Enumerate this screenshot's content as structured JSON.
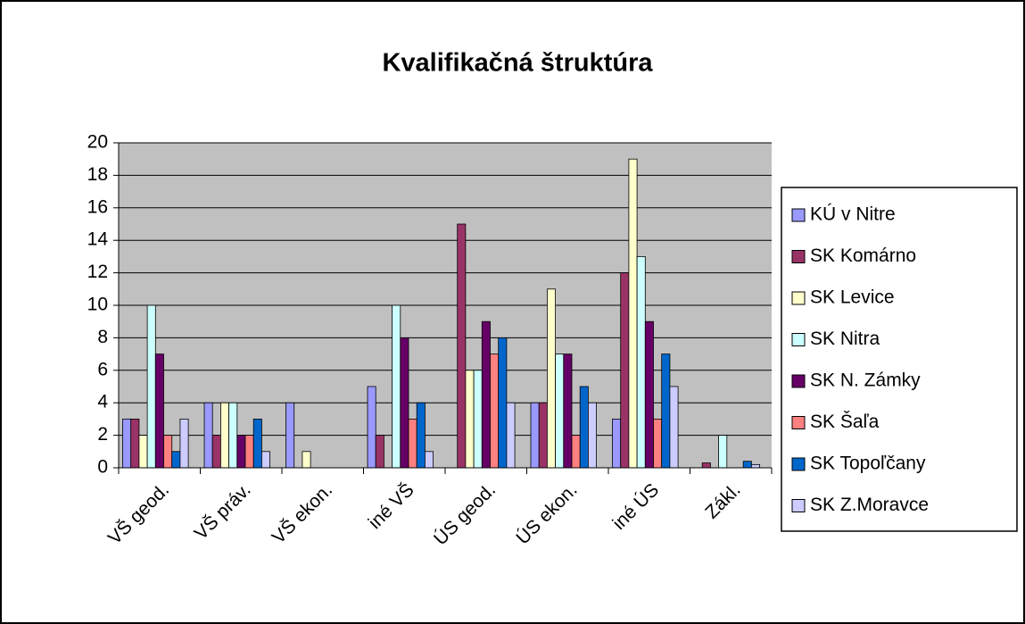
{
  "chart_data": {
    "type": "bar",
    "title": "Kvalifikačná štruktúra",
    "categories": [
      "VŠ geod.",
      "VŠ práv.",
      "VŠ ekon.",
      "iné VŠ",
      "ÚS geod.",
      "ÚS ekon.",
      "iné ÚS",
      "Zákl."
    ],
    "series": [
      {
        "name": "KÚ v Nitre",
        "color": "#9999ff",
        "values": [
          3,
          4,
          4,
          5,
          0,
          4,
          3,
          0
        ]
      },
      {
        "name": "SK Komárno",
        "color": "#993366",
        "values": [
          3,
          2,
          0,
          2,
          15,
          4,
          12,
          0.3
        ]
      },
      {
        "name": "SK Levice",
        "color": "#ffffcc",
        "values": [
          2,
          4,
          1,
          0,
          6,
          11,
          19,
          0
        ]
      },
      {
        "name": "SK Nitra",
        "color": "#ccffff",
        "values": [
          10,
          4,
          0,
          10,
          6,
          7,
          13,
          2
        ]
      },
      {
        "name": "SK N. Zámky",
        "color": "#660066",
        "values": [
          7,
          2,
          0,
          8,
          9,
          7,
          9,
          0
        ]
      },
      {
        "name": "SK Šaľa",
        "color": "#ff8080",
        "values": [
          2,
          2,
          0,
          3,
          7,
          2,
          3,
          0
        ]
      },
      {
        "name": "SK Topoľčany",
        "color": "#0066cc",
        "values": [
          1,
          3,
          0,
          4,
          8,
          5,
          7,
          0.4
        ]
      },
      {
        "name": "SK Z.Moravce",
        "color": "#ccccff",
        "values": [
          3,
          1,
          0,
          1,
          4,
          4,
          5,
          0.2
        ]
      }
    ],
    "ylim": [
      0,
      20
    ],
    "yticks": [
      0,
      2,
      4,
      6,
      8,
      10,
      12,
      14,
      16,
      18,
      20
    ],
    "grid": true,
    "legend": "right"
  }
}
